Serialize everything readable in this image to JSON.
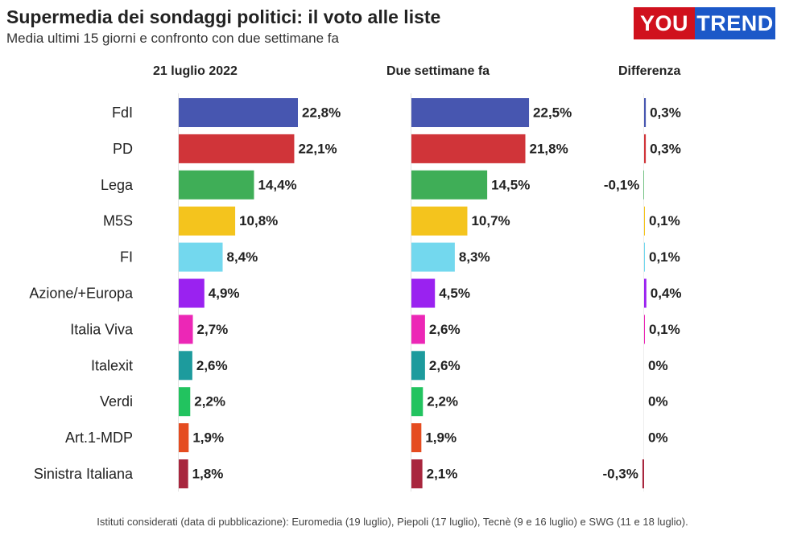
{
  "header": {
    "title": "Supermedia dei sondaggi politici: il voto alle liste",
    "subtitle": "Media ultimi 15 giorni e confronto con due settimane fa",
    "logo_left": "YOU",
    "logo_right": "TREND"
  },
  "columns": {
    "current": "21 luglio 2022",
    "previous": "Due settimane fa",
    "difference": "Differenza"
  },
  "footer": "Istituti considerati (data di pubblicazione): Euromedia (19 luglio), Piepoli (17 luglio), Tecnè (9 e 16 luglio) e SWG (11 e 18 luglio).",
  "chart_data": {
    "type": "bar",
    "orientation": "horizontal",
    "categories": [
      "FdI",
      "PD",
      "Lega",
      "M5S",
      "FI",
      "Azione/+Europa",
      "Italia Viva",
      "Italexit",
      "Verdi",
      "Art.1-MDP",
      "Sinistra Italiana"
    ],
    "colors": [
      "#4756b0",
      "#d03439",
      "#3fae57",
      "#f4c41d",
      "#73d8ee",
      "#9a22f0",
      "#ec27b6",
      "#1d9b9d",
      "#22c35f",
      "#e54c20",
      "#a8263e"
    ],
    "series": [
      {
        "name": "21 luglio 2022",
        "values": [
          22.8,
          22.1,
          14.4,
          10.8,
          8.4,
          4.9,
          2.7,
          2.6,
          2.2,
          1.9,
          1.8
        ],
        "labels": [
          "22,8%",
          "22,1%",
          "14,4%",
          "10,8%",
          "8,4%",
          "4,9%",
          "2,7%",
          "2,6%",
          "2,2%",
          "1,9%",
          "1,8%"
        ]
      },
      {
        "name": "Due settimane fa",
        "values": [
          22.5,
          21.8,
          14.5,
          10.7,
          8.3,
          4.5,
          2.6,
          2.6,
          2.2,
          1.9,
          2.1
        ],
        "labels": [
          "22,5%",
          "21,8%",
          "14,5%",
          "10,7%",
          "8,3%",
          "4,5%",
          "2,6%",
          "2,6%",
          "2,2%",
          "1,9%",
          "2,1%"
        ]
      },
      {
        "name": "Differenza",
        "values": [
          0.3,
          0.3,
          -0.1,
          0.1,
          0.1,
          0.4,
          0.1,
          0,
          0,
          0,
          -0.3
        ],
        "labels": [
          "0,3%",
          "0,3%",
          "-0,1%",
          "0,1%",
          "0,1%",
          "0,4%",
          "0,1%",
          "0%",
          "0%",
          "0%",
          "-0,3%"
        ]
      }
    ]
  }
}
